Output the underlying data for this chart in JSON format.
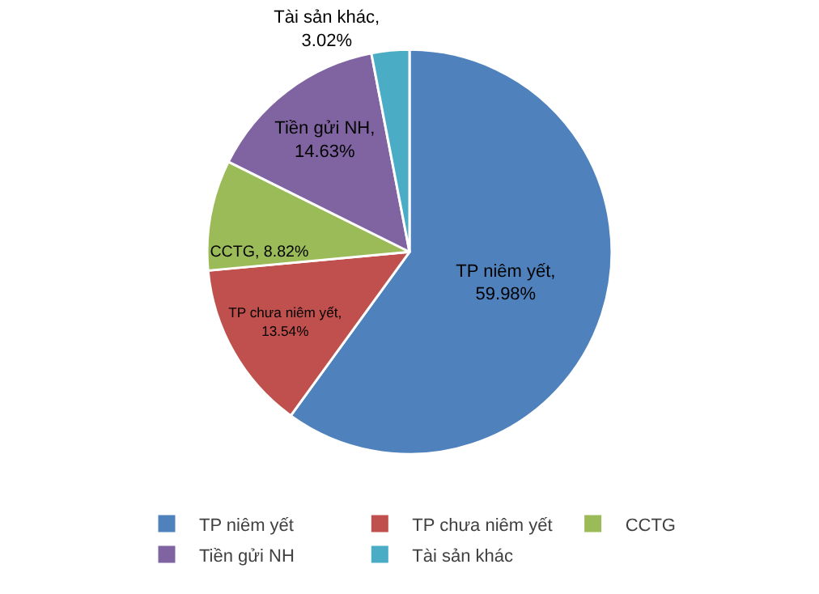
{
  "chart_data": {
    "type": "pie",
    "categories": [
      "TP niêm yết",
      "TP chưa niêm yết",
      "CCTG",
      "Tiền gửi NH",
      "Tài sản khác"
    ],
    "values": [
      59.98,
      13.54,
      8.82,
      14.63,
      3.02
    ],
    "colors": [
      "#4f81bd",
      "#c0504d",
      "#9bbb59",
      "#8064a2",
      "#4bacc6"
    ],
    "value_labels": [
      "TP niêm yết, 59.98%",
      "TP chưa niêm yết, 13.54%",
      "CCTG, 8.82%",
      "Tiền gửi NH, 14.63%",
      "Tài sản khác, 3.02%"
    ],
    "legend": "bottom"
  }
}
